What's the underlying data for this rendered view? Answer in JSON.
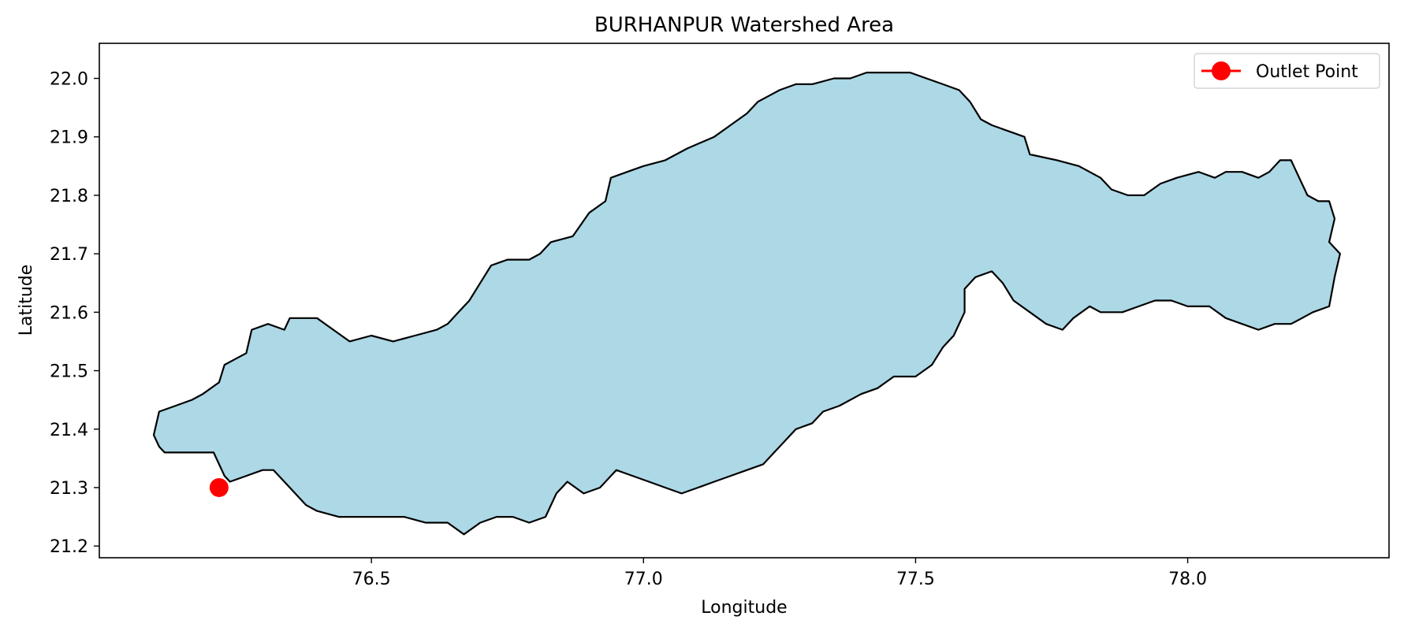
{
  "chart_data": {
    "type": "map",
    "title": "BURHANPUR Watershed Area",
    "xlabel": "Longitude",
    "ylabel": "Latitude",
    "xlim": [
      76.0,
      78.37
    ],
    "ylim": [
      21.18,
      22.06
    ],
    "xticks": [
      76.5,
      77.0,
      77.5,
      78.0
    ],
    "yticks": [
      21.2,
      21.3,
      21.4,
      21.5,
      21.6,
      21.7,
      21.8,
      21.9,
      22.0
    ],
    "watershed": {
      "fill_color": "#add8e6",
      "edge_color": "#000000",
      "boundary": [
        [
          76.1,
          21.39
        ],
        [
          76.11,
          21.43
        ],
        [
          76.14,
          21.44
        ],
        [
          76.17,
          21.45
        ],
        [
          76.19,
          21.46
        ],
        [
          76.22,
          21.48
        ],
        [
          76.23,
          21.51
        ],
        [
          76.25,
          21.52
        ],
        [
          76.27,
          21.53
        ],
        [
          76.28,
          21.57
        ],
        [
          76.31,
          21.58
        ],
        [
          76.34,
          21.57
        ],
        [
          76.35,
          21.59
        ],
        [
          76.4,
          21.59
        ],
        [
          76.43,
          21.57
        ],
        [
          76.46,
          21.55
        ],
        [
          76.5,
          21.56
        ],
        [
          76.54,
          21.55
        ],
        [
          76.58,
          21.56
        ],
        [
          76.62,
          21.57
        ],
        [
          76.64,
          21.58
        ],
        [
          76.66,
          21.6
        ],
        [
          76.68,
          21.62
        ],
        [
          76.7,
          21.65
        ],
        [
          76.72,
          21.68
        ],
        [
          76.75,
          21.69
        ],
        [
          76.79,
          21.69
        ],
        [
          76.81,
          21.7
        ],
        [
          76.83,
          21.72
        ],
        [
          76.87,
          21.73
        ],
        [
          76.9,
          21.77
        ],
        [
          76.93,
          21.79
        ],
        [
          76.94,
          21.83
        ],
        [
          76.97,
          21.84
        ],
        [
          77.0,
          21.85
        ],
        [
          77.04,
          21.86
        ],
        [
          77.06,
          21.87
        ],
        [
          77.08,
          21.88
        ],
        [
          77.13,
          21.9
        ],
        [
          77.16,
          21.92
        ],
        [
          77.19,
          21.94
        ],
        [
          77.21,
          21.96
        ],
        [
          77.23,
          21.97
        ],
        [
          77.25,
          21.98
        ],
        [
          77.28,
          21.99
        ],
        [
          77.31,
          21.99
        ],
        [
          77.35,
          22.0
        ],
        [
          77.38,
          22.0
        ],
        [
          77.41,
          22.01
        ],
        [
          77.45,
          22.01
        ],
        [
          77.49,
          22.01
        ],
        [
          77.52,
          22.0
        ],
        [
          77.55,
          21.99
        ],
        [
          77.58,
          21.98
        ],
        [
          77.6,
          21.96
        ],
        [
          77.62,
          21.93
        ],
        [
          77.64,
          21.92
        ],
        [
          77.67,
          21.91
        ],
        [
          77.7,
          21.9
        ],
        [
          77.71,
          21.87
        ],
        [
          77.76,
          21.86
        ],
        [
          77.8,
          21.85
        ],
        [
          77.84,
          21.83
        ],
        [
          77.86,
          21.81
        ],
        [
          77.89,
          21.8
        ],
        [
          77.92,
          21.8
        ],
        [
          77.95,
          21.82
        ],
        [
          77.98,
          21.83
        ],
        [
          78.02,
          21.84
        ],
        [
          78.05,
          21.83
        ],
        [
          78.07,
          21.84
        ],
        [
          78.1,
          21.84
        ],
        [
          78.13,
          21.83
        ],
        [
          78.15,
          21.84
        ],
        [
          78.17,
          21.86
        ],
        [
          78.19,
          21.86
        ],
        [
          78.2,
          21.84
        ],
        [
          78.22,
          21.8
        ],
        [
          78.24,
          21.79
        ],
        [
          78.26,
          21.79
        ],
        [
          78.27,
          21.76
        ],
        [
          78.26,
          21.72
        ],
        [
          78.28,
          21.7
        ],
        [
          78.27,
          21.66
        ],
        [
          78.26,
          21.61
        ],
        [
          78.23,
          21.6
        ],
        [
          78.21,
          21.59
        ],
        [
          78.19,
          21.58
        ],
        [
          78.16,
          21.58
        ],
        [
          78.13,
          21.57
        ],
        [
          78.1,
          21.58
        ],
        [
          78.07,
          21.59
        ],
        [
          78.04,
          21.61
        ],
        [
          78.0,
          21.61
        ],
        [
          77.97,
          21.62
        ],
        [
          77.94,
          21.62
        ],
        [
          77.91,
          21.61
        ],
        [
          77.88,
          21.6
        ],
        [
          77.84,
          21.6
        ],
        [
          77.82,
          21.61
        ],
        [
          77.79,
          21.59
        ],
        [
          77.77,
          21.57
        ],
        [
          77.74,
          21.58
        ],
        [
          77.71,
          21.6
        ],
        [
          77.68,
          21.62
        ],
        [
          77.66,
          21.65
        ],
        [
          77.64,
          21.67
        ],
        [
          77.61,
          21.66
        ],
        [
          77.59,
          21.64
        ],
        [
          77.59,
          21.6
        ],
        [
          77.57,
          21.56
        ],
        [
          77.55,
          21.54
        ],
        [
          77.53,
          21.51
        ],
        [
          77.5,
          21.49
        ],
        [
          77.46,
          21.49
        ],
        [
          77.43,
          21.47
        ],
        [
          77.4,
          21.46
        ],
        [
          77.36,
          21.44
        ],
        [
          77.33,
          21.43
        ],
        [
          77.31,
          21.41
        ],
        [
          77.28,
          21.4
        ],
        [
          77.26,
          21.38
        ],
        [
          77.24,
          21.36
        ],
        [
          77.22,
          21.34
        ],
        [
          77.19,
          21.33
        ],
        [
          77.16,
          21.32
        ],
        [
          77.13,
          21.31
        ],
        [
          77.1,
          21.3
        ],
        [
          77.07,
          21.29
        ],
        [
          77.04,
          21.3
        ],
        [
          77.01,
          21.31
        ],
        [
          76.98,
          21.32
        ],
        [
          76.95,
          21.33
        ],
        [
          76.92,
          21.3
        ],
        [
          76.89,
          21.29
        ],
        [
          76.86,
          21.31
        ],
        [
          76.84,
          21.29
        ],
        [
          76.82,
          21.25
        ],
        [
          76.79,
          21.24
        ],
        [
          76.76,
          21.25
        ],
        [
          76.73,
          21.25
        ],
        [
          76.7,
          21.24
        ],
        [
          76.67,
          21.22
        ],
        [
          76.64,
          21.24
        ],
        [
          76.6,
          21.24
        ],
        [
          76.56,
          21.25
        ],
        [
          76.52,
          21.25
        ],
        [
          76.48,
          21.25
        ],
        [
          76.44,
          21.25
        ],
        [
          76.4,
          21.26
        ],
        [
          76.38,
          21.27
        ],
        [
          76.36,
          21.29
        ],
        [
          76.34,
          21.31
        ],
        [
          76.32,
          21.33
        ],
        [
          76.3,
          21.33
        ],
        [
          76.27,
          21.32
        ],
        [
          76.24,
          21.31
        ],
        [
          76.23,
          21.32
        ],
        [
          76.21,
          21.36
        ],
        [
          76.18,
          21.36
        ],
        [
          76.15,
          21.36
        ],
        [
          76.12,
          21.36
        ],
        [
          76.11,
          21.37
        ],
        [
          76.1,
          21.39
        ]
      ]
    },
    "outlet_point": {
      "lon": 76.22,
      "lat": 21.3,
      "color": "#ff0000"
    },
    "legend": {
      "location": "top-right",
      "entries": [
        "Outlet Point"
      ]
    },
    "grid": false
  }
}
